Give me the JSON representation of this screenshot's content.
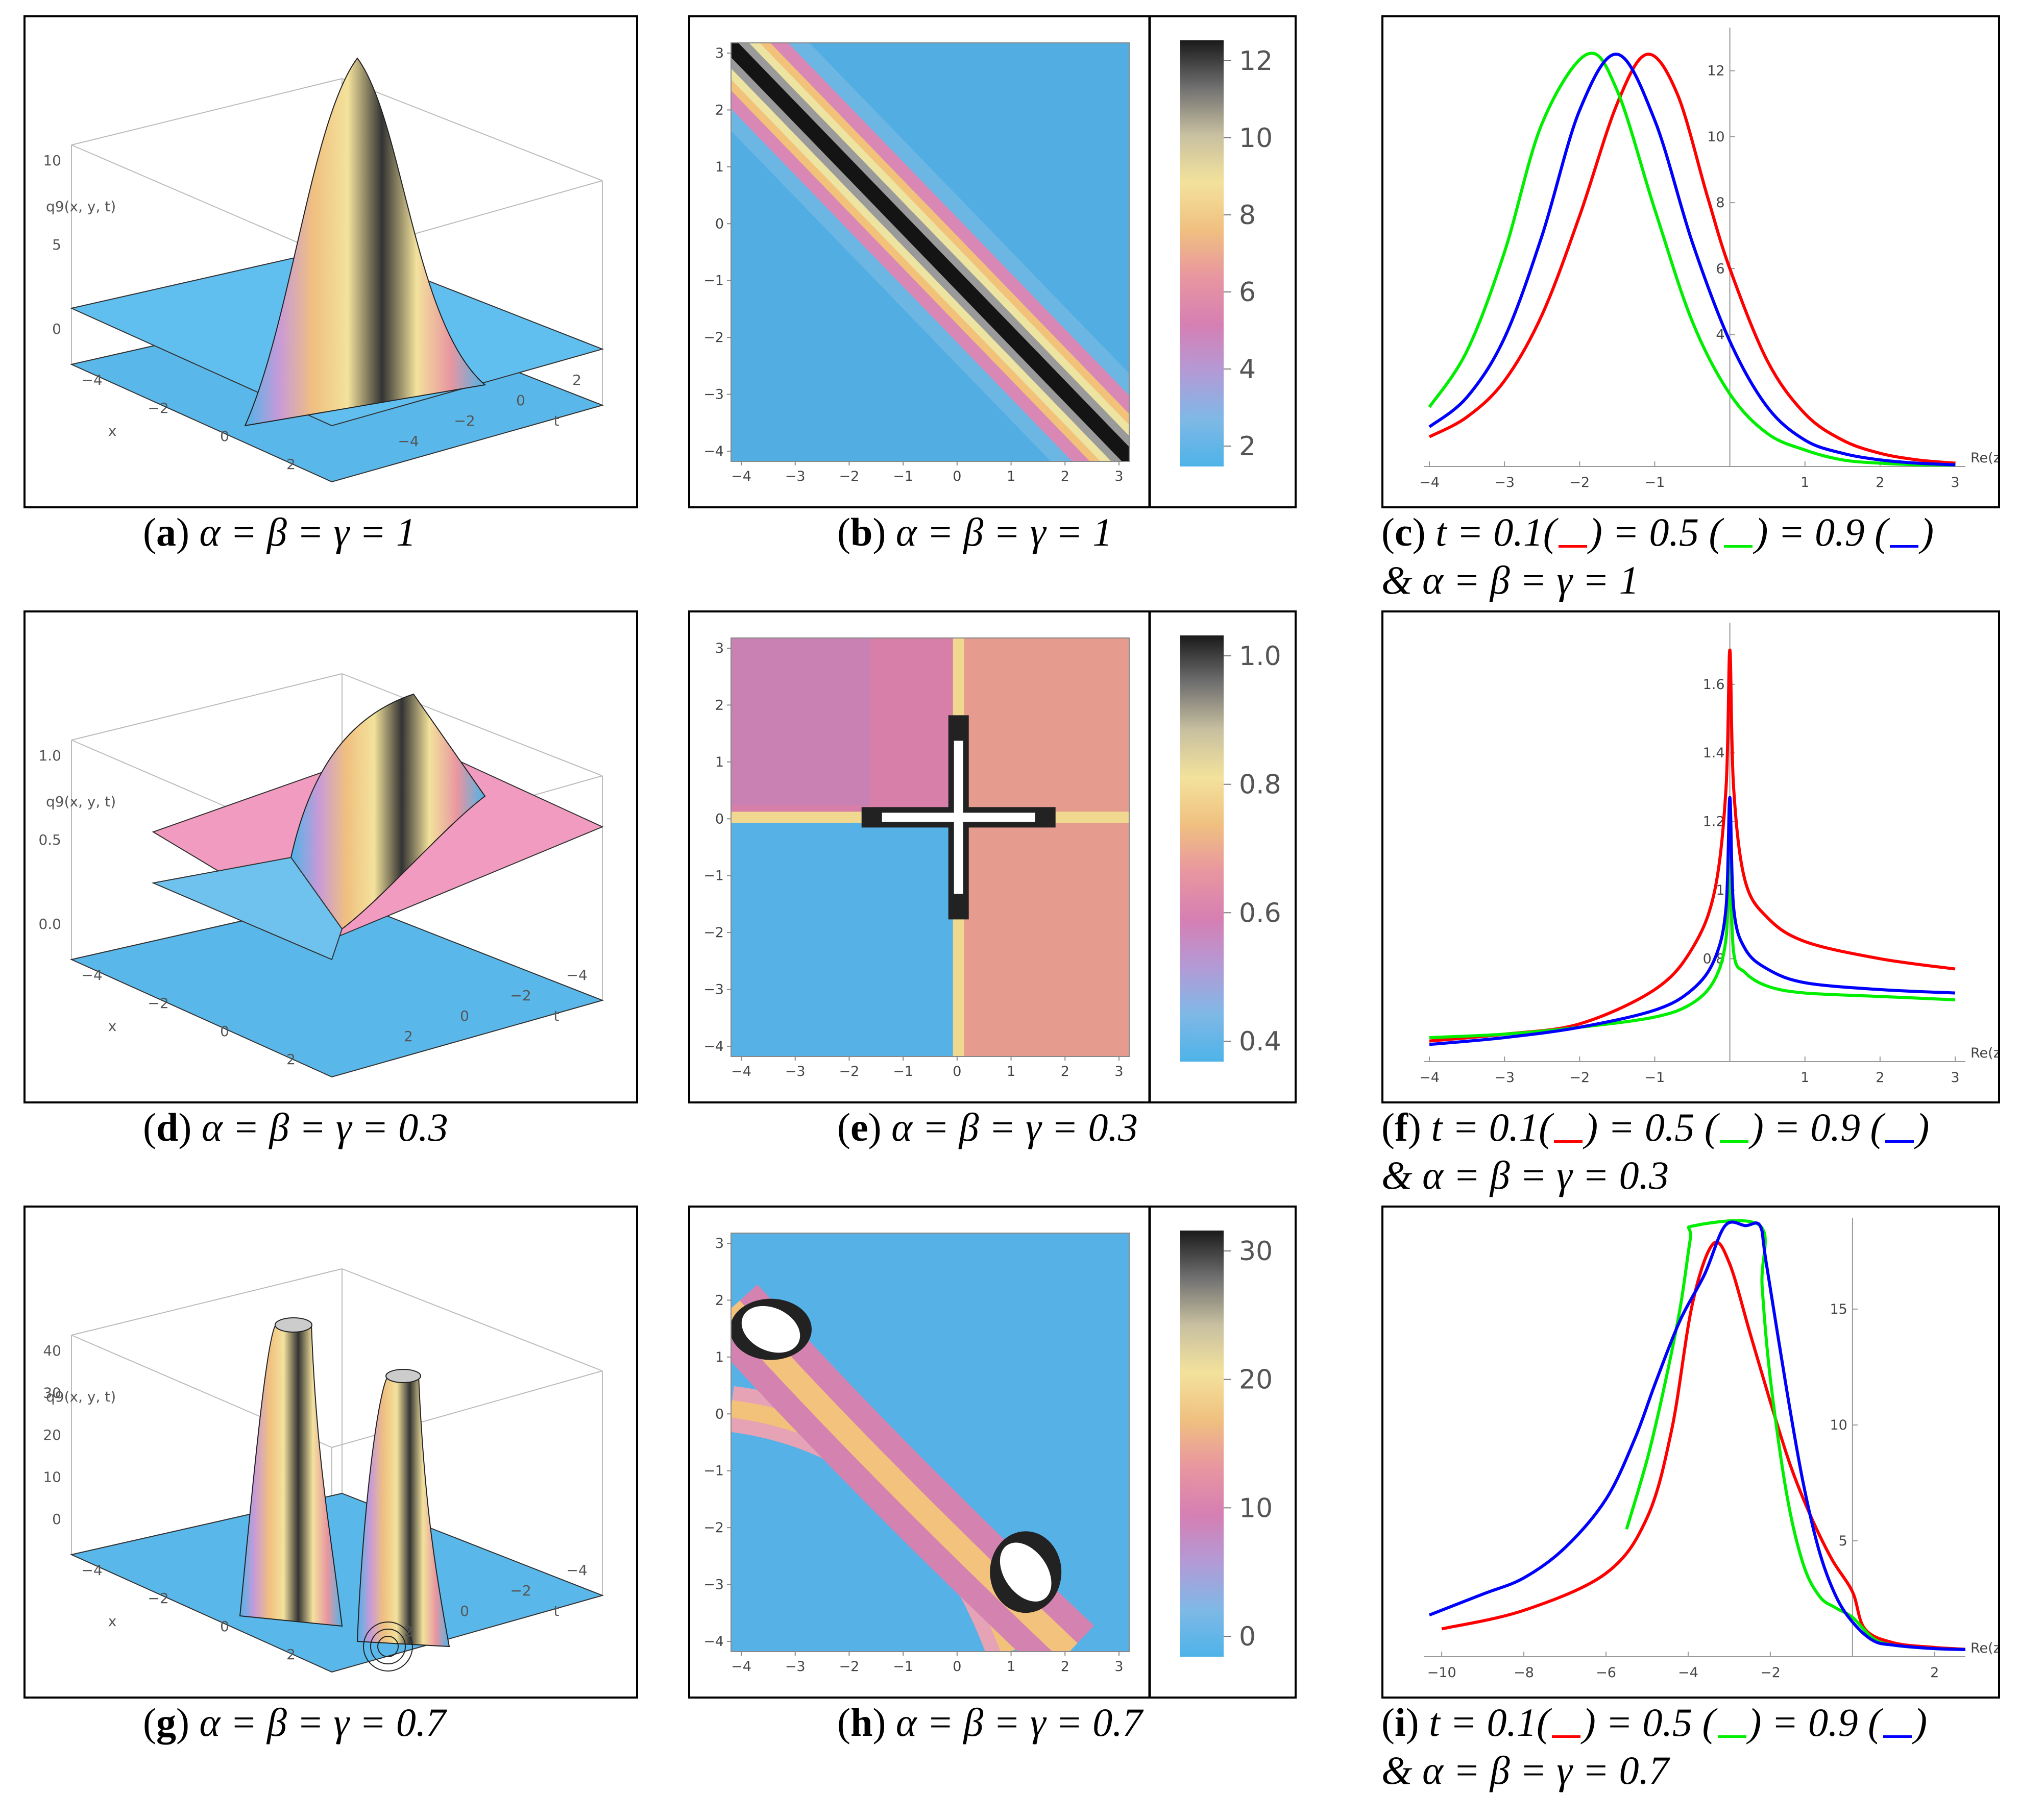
{
  "panels_3d": [
    {
      "id": "a",
      "zlabel": "q9(x, y, t)",
      "zticks": [
        "10",
        "5",
        "0"
      ],
      "xticks": [
        "-4",
        "-2",
        "0",
        "2"
      ],
      "tticks": [
        "2",
        "0",
        "-2",
        "-4"
      ],
      "xlabel": "x",
      "tlabel": "t",
      "surface": "peak"
    },
    {
      "id": "d",
      "zlabel": "q9(x, y, t)",
      "zticks": [
        "1.0",
        "0.5",
        "0.0"
      ],
      "xticks": [
        "-4",
        "-2",
        "0",
        "2"
      ],
      "tticks": [
        "-4",
        "-2",
        "0",
        "2"
      ],
      "xlabel": "x",
      "tlabel": "t",
      "surface": "cross"
    },
    {
      "id": "g",
      "zlabel": "q9(x, y, t)",
      "zticks": [
        "40",
        "30",
        "20",
        "10",
        "0"
      ],
      "xticks": [
        "-4",
        "-2",
        "0",
        "2"
      ],
      "tticks": [
        "-4",
        "-2",
        "0",
        "2"
      ],
      "xlabel": "x",
      "tlabel": "t",
      "surface": "twin"
    }
  ],
  "panels_density": [
    {
      "id": "b",
      "xticks": [
        "-4",
        "-3",
        "-2",
        "-1",
        "0",
        "1",
        "2",
        "3"
      ],
      "yticks": [
        "3",
        "2",
        "1",
        "0",
        "-1",
        "-2",
        "-3",
        "-4"
      ],
      "colorbar": [
        "12",
        "10",
        "8",
        "6",
        "4",
        "2"
      ],
      "pattern": "diagonal"
    },
    {
      "id": "e",
      "xticks": [
        "-4",
        "-3",
        "-2",
        "-1",
        "0",
        "1",
        "2",
        "3"
      ],
      "yticks": [
        "3",
        "2",
        "1",
        "0",
        "-1",
        "-2",
        "-3",
        "-4"
      ],
      "colorbar": [
        "1.0",
        "0.8",
        "0.6",
        "0.4"
      ],
      "pattern": "cross"
    },
    {
      "id": "h",
      "xticks": [
        "-4",
        "-3",
        "-2",
        "-1",
        "0",
        "1",
        "2",
        "3"
      ],
      "yticks": [
        "3",
        "2",
        "1",
        "0",
        "-1",
        "-2",
        "-3",
        "-4"
      ],
      "colorbar": [
        "30",
        "20",
        "10",
        "0"
      ],
      "pattern": "twin"
    }
  ],
  "captions": {
    "a": {
      "letter": "a",
      "text": "α = β = γ = 1"
    },
    "b": {
      "letter": "b",
      "text": "α = β = γ = 1"
    },
    "c": {
      "letter": "c",
      "line1": "t = 0.1(",
      "mid1": ") = 0.5 (",
      "mid2": ") = 0.9 (",
      "end": ")",
      "line2": "& α =  β =  γ =  1"
    },
    "d": {
      "letter": "d",
      "text": "α = β = γ = 0.3"
    },
    "e": {
      "letter": "e",
      "text": "α = β = γ = 0.3"
    },
    "f": {
      "letter": "f",
      "line1": "t = 0.1(",
      "mid1": ") = 0.5 (",
      "mid2": ") = 0.9 (",
      "end": ")",
      "line2": "& α =  β =  γ =  0.3"
    },
    "g": {
      "letter": "g",
      "text": "α = β = γ = 0.7"
    },
    "h": {
      "letter": "h",
      "text": "α = β = γ = 0.7"
    },
    "i": {
      "letter": "i",
      "line1": "t = 0.1(",
      "mid1": ") = 0.5 (",
      "mid2": ") = 0.9 (",
      "end": ")",
      "line2": "& α =  β =  γ =  0.7"
    }
  },
  "chart_data": [
    {
      "id": "c",
      "type": "line",
      "xlabel": "Re(z)",
      "xlim": [
        -4,
        3
      ],
      "ylim": [
        0,
        13
      ],
      "xticks": [
        -4,
        -3,
        -2,
        -1,
        1,
        2,
        3
      ],
      "yticks": [
        4,
        6,
        8,
        10,
        12
      ],
      "series": [
        {
          "color": "#ff0000",
          "t": 0.1,
          "peak_x": -1.1,
          "peak_y": 12.5,
          "x": [
            -4,
            -3.5,
            -3,
            -2.5,
            -2,
            -1.5,
            -1.1,
            -0.7,
            -0.3,
            0,
            0.5,
            1,
            1.5,
            2,
            2.5,
            3
          ],
          "y": [
            0.9,
            1.5,
            2.6,
            4.6,
            7.6,
            11,
            12.5,
            11.3,
            8.2,
            6.0,
            3.2,
            1.6,
            0.8,
            0.4,
            0.2,
            0.1
          ]
        },
        {
          "color": "#00ee00",
          "t": 0.5,
          "peak_x": -1.9,
          "peak_y": 12.5,
          "x": [
            -4,
            -3.5,
            -3,
            -2.5,
            -1.9,
            -1.5,
            -1,
            -0.5,
            0,
            0.5,
            1,
            1.5,
            2,
            2.5,
            3
          ],
          "y": [
            1.8,
            3.5,
            6.5,
            10.4,
            12.5,
            11.4,
            7.8,
            4.4,
            2.2,
            1.0,
            0.5,
            0.2,
            0.1,
            0.05,
            0.02
          ]
        },
        {
          "color": "#0000ff",
          "t": 0.9,
          "peak_x": -1.5,
          "peak_y": 12.5,
          "x": [
            -4,
            -3.5,
            -3,
            -2.5,
            -2,
            -1.5,
            -1,
            -0.5,
            0,
            0.5,
            1,
            1.5,
            2,
            2.5,
            3
          ],
          "y": [
            1.2,
            2.1,
            3.9,
            7.0,
            10.8,
            12.5,
            10.5,
            6.8,
            3.8,
            1.8,
            0.8,
            0.4,
            0.2,
            0.1,
            0.05
          ]
        }
      ]
    },
    {
      "id": "f",
      "type": "line",
      "xlabel": "Re(z)",
      "xlim": [
        -4,
        3
      ],
      "ylim": [
        0.5,
        1.75
      ],
      "xticks": [
        -4,
        -3,
        -2,
        -1,
        1,
        2,
        3
      ],
      "yticks": [
        0.8,
        1.0,
        1.2,
        1.4,
        1.6
      ],
      "series": [
        {
          "color": "#ff0000",
          "t": 0.1,
          "x": [
            -4,
            -3,
            -2,
            -1,
            -0.5,
            -0.2,
            -0.05,
            0,
            0.05,
            0.2,
            0.5,
            1,
            2,
            3
          ],
          "y": [
            0.56,
            0.58,
            0.61,
            0.71,
            0.83,
            1.0,
            1.3,
            1.7,
            1.3,
            1.03,
            0.92,
            0.85,
            0.8,
            0.77
          ]
        },
        {
          "color": "#00ee00",
          "t": 0.5,
          "x": [
            -4,
            -3,
            -2,
            -1,
            -0.5,
            -0.2,
            -0.05,
            0,
            0.05,
            0.2,
            0.5,
            1,
            2,
            3
          ],
          "y": [
            0.57,
            0.58,
            0.6,
            0.63,
            0.67,
            0.74,
            0.86,
            1.1,
            0.82,
            0.76,
            0.72,
            0.7,
            0.69,
            0.68
          ]
        },
        {
          "color": "#0000ff",
          "t": 0.9,
          "x": [
            -4,
            -3,
            -2,
            -1,
            -0.5,
            -0.2,
            -0.05,
            0,
            0.05,
            0.2,
            0.5,
            1,
            2,
            3
          ],
          "y": [
            0.55,
            0.57,
            0.6,
            0.65,
            0.71,
            0.8,
            0.95,
            1.27,
            0.95,
            0.83,
            0.77,
            0.73,
            0.71,
            0.7
          ]
        }
      ]
    },
    {
      "id": "i",
      "type": "line",
      "xlabel": "Re(z)",
      "xlim": [
        -10.3,
        2.5
      ],
      "ylim": [
        0,
        18.5
      ],
      "xticks": [
        -10,
        -8,
        -6,
        -4,
        -2,
        2
      ],
      "yticks": [
        5,
        10,
        15
      ],
      "series": [
        {
          "color": "#ff0000",
          "t": 0.1,
          "x": [
            -10,
            -8,
            -6,
            -5,
            -4.4,
            -3.9,
            -3.4,
            -3,
            -2.5,
            -2,
            -1.5,
            -1,
            -0.5,
            0,
            0.3,
            1,
            2,
            3
          ],
          "y": [
            1.2,
            2.0,
            3.6,
            6.0,
            9.8,
            15.2,
            17.8,
            17.0,
            14.0,
            11.0,
            8.2,
            6.0,
            4.2,
            2.8,
            1.2,
            0.6,
            0.4,
            0.3
          ]
        },
        {
          "color": "#00ee00",
          "t": 0.5,
          "x": [
            -5.5,
            -5.0,
            -4.6,
            -4.2,
            -3.95,
            -3.85,
            -2.25,
            -2.2,
            -2.0,
            -1.6,
            -1.2,
            -0.8,
            -0.4,
            0,
            0.5,
            1,
            2,
            3
          ],
          "y": [
            5.5,
            8.5,
            11.5,
            15.0,
            18.0,
            18.6,
            18.6,
            16.0,
            12.0,
            7.0,
            4.0,
            2.6,
            2.1,
            1.7,
            0.8,
            0.5,
            0.35,
            0.3
          ]
        },
        {
          "color": "#0000ff",
          "t": 0.9,
          "x": [
            -10.3,
            -9,
            -8,
            -7,
            -6,
            -5.3,
            -4.8,
            -4.2,
            -3.6,
            -3.1,
            -2.6,
            -2.25,
            -2.1,
            -1.6,
            -1.2,
            -0.8,
            -0.4,
            0,
            0.5,
            1,
            2,
            3
          ],
          "y": [
            1.8,
            2.7,
            3.4,
            4.7,
            6.8,
            9.4,
            11.8,
            14.5,
            16.5,
            18.6,
            18.6,
            18.6,
            17.0,
            11.5,
            7.5,
            4.5,
            2.6,
            1.5,
            0.7,
            0.5,
            0.35,
            0.3
          ]
        }
      ]
    }
  ]
}
